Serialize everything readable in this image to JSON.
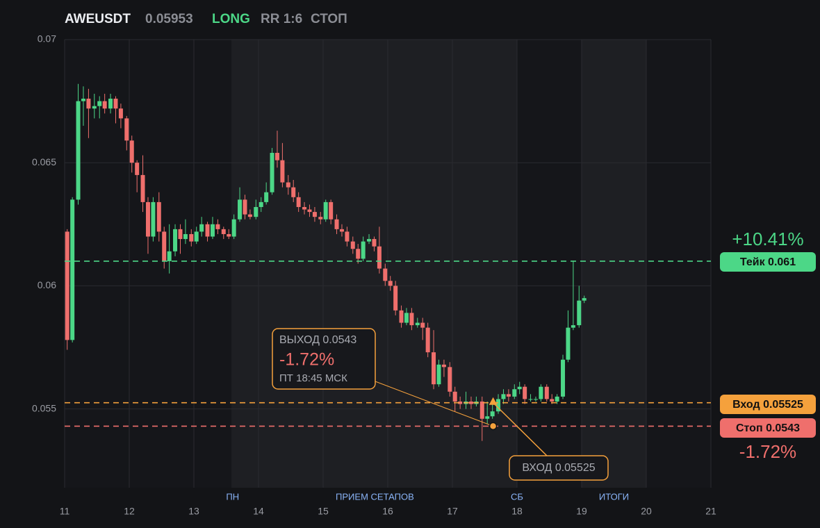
{
  "chart_data": {
    "type": "candlestick",
    "title": "AWEUSDT",
    "price": 0.05953,
    "side": "LONG",
    "rr": "RR 1:6",
    "status": "СТОП",
    "up_color": "#4cd787",
    "down_color": "#ef6f6c",
    "xlim": [
      11,
      21
    ],
    "xticks": [
      11,
      12,
      13,
      14,
      15,
      16,
      17,
      18,
      19,
      20,
      21
    ],
    "ylim": [
      0.0518,
      0.07
    ],
    "yticks": [
      0.055,
      0.06,
      0.065,
      0.07
    ],
    "grid": true,
    "regions": [
      {
        "from": 13.58,
        "to": 18.0
      },
      {
        "from": 19.0,
        "to": 20.0
      }
    ],
    "region_labels": [
      {
        "text": "ПН",
        "x": 13.6
      },
      {
        "text": "ПРИЕМ СЕТАПОВ",
        "x": 15.8
      },
      {
        "text": "СБ",
        "x": 18.0
      },
      {
        "text": "ИТОГИ",
        "x": 19.5
      }
    ],
    "x": [
      11.04,
      11.12,
      11.21,
      11.29,
      11.37,
      11.46,
      11.54,
      11.62,
      11.71,
      11.79,
      11.87,
      11.96,
      12.04,
      12.12,
      12.21,
      12.29,
      12.37,
      12.46,
      12.54,
      12.62,
      12.71,
      12.79,
      12.87,
      12.96,
      13.04,
      13.12,
      13.21,
      13.29,
      13.37,
      13.46,
      13.54,
      13.62,
      13.71,
      13.79,
      13.87,
      13.96,
      14.04,
      14.12,
      14.21,
      14.29,
      14.37,
      14.46,
      14.54,
      14.62,
      14.71,
      14.79,
      14.87,
      14.96,
      15.04,
      15.12,
      15.21,
      15.29,
      15.37,
      15.46,
      15.54,
      15.62,
      15.71,
      15.79,
      15.87,
      15.96,
      16.04,
      16.12,
      16.21,
      16.29,
      16.37,
      16.46,
      16.54,
      16.62,
      16.71,
      16.79,
      16.87,
      16.96,
      17.04,
      17.12,
      17.21,
      17.29,
      17.37,
      17.46,
      17.54,
      17.62,
      17.71,
      17.79,
      17.87,
      17.96,
      18.04,
      18.12,
      18.21,
      18.29,
      18.37,
      18.46,
      18.54,
      18.62,
      18.71,
      18.79,
      18.87,
      18.96,
      19.04
    ],
    "open": [
      0.0622,
      0.0578,
      0.0635,
      0.0675,
      0.0676,
      0.0672,
      0.0673,
      0.0675,
      0.0672,
      0.0676,
      0.0672,
      0.0668,
      0.0659,
      0.065,
      0.0645,
      0.0634,
      0.062,
      0.0634,
      0.0622,
      0.061,
      0.0614,
      0.0623,
      0.0619,
      0.0621,
      0.0618,
      0.0622,
      0.0625,
      0.062,
      0.0625,
      0.0623,
      0.0621,
      0.062,
      0.0627,
      0.0635,
      0.0629,
      0.0628,
      0.0632,
      0.0634,
      0.0638,
      0.0654,
      0.0651,
      0.0642,
      0.064,
      0.0636,
      0.0632,
      0.0631,
      0.063,
      0.0628,
      0.0627,
      0.0634,
      0.0627,
      0.0623,
      0.0622,
      0.0618,
      0.0615,
      0.0611,
      0.0618,
      0.0619,
      0.0616,
      0.0607,
      0.0602,
      0.06,
      0.059,
      0.0585,
      0.0589,
      0.0584,
      0.0585,
      0.0583,
      0.0573,
      0.056,
      0.0568,
      0.0567,
      0.0557,
      0.0553,
      0.0552,
      0.0553,
      0.0552,
      0.0553,
      0.0546,
      0.0547,
      0.0549,
      0.0554,
      0.0556,
      0.0555,
      0.0558,
      0.0559,
      0.0554,
      0.0554,
      0.0554,
      0.0559,
      0.0554,
      0.0553,
      0.0555,
      0.057,
      0.0583,
      0.0584,
      0.0594
    ],
    "high": [
      0.0623,
      0.0636,
      0.0682,
      0.0681,
      0.068,
      0.0678,
      0.0677,
      0.0678,
      0.0678,
      0.0677,
      0.0674,
      0.0669,
      0.0661,
      0.0651,
      0.0653,
      0.0636,
      0.0636,
      0.0638,
      0.0624,
      0.0625,
      0.0625,
      0.0625,
      0.0627,
      0.0623,
      0.0624,
      0.0628,
      0.0626,
      0.0628,
      0.0627,
      0.0624,
      0.0623,
      0.0629,
      0.064,
      0.0637,
      0.0631,
      0.0635,
      0.0636,
      0.0642,
      0.0656,
      0.0663,
      0.0658,
      0.0645,
      0.0643,
      0.0638,
      0.0634,
      0.0633,
      0.0632,
      0.063,
      0.0635,
      0.0635,
      0.0629,
      0.0625,
      0.0624,
      0.062,
      0.0617,
      0.062,
      0.0621,
      0.062,
      0.0624,
      0.0609,
      0.0604,
      0.0602,
      0.0592,
      0.0591,
      0.0591,
      0.0587,
      0.0587,
      0.0585,
      0.0582,
      0.057,
      0.057,
      0.0569,
      0.0559,
      0.0555,
      0.0557,
      0.0555,
      0.0555,
      0.0555,
      0.0553,
      0.0553,
      0.0556,
      0.0558,
      0.0558,
      0.056,
      0.0561,
      0.056,
      0.0556,
      0.0555,
      0.056,
      0.056,
      0.0556,
      0.0556,
      0.0572,
      0.059,
      0.061,
      0.06,
      0.0596
    ],
    "low": [
      0.0574,
      0.0577,
      0.0633,
      0.0665,
      0.066,
      0.0668,
      0.0668,
      0.067,
      0.067,
      0.0666,
      0.0664,
      0.0655,
      0.0646,
      0.0638,
      0.063,
      0.0613,
      0.0618,
      0.0618,
      0.0607,
      0.0605,
      0.0612,
      0.0613,
      0.0617,
      0.0616,
      0.0617,
      0.062,
      0.0618,
      0.0619,
      0.0621,
      0.0619,
      0.0619,
      0.0619,
      0.0626,
      0.0627,
      0.0627,
      0.0627,
      0.063,
      0.0633,
      0.0637,
      0.0648,
      0.064,
      0.0637,
      0.0634,
      0.063,
      0.0629,
      0.0628,
      0.0626,
      0.0625,
      0.0626,
      0.0625,
      0.0621,
      0.062,
      0.0616,
      0.0613,
      0.0609,
      0.061,
      0.0617,
      0.0614,
      0.0605,
      0.06,
      0.0598,
      0.0588,
      0.0583,
      0.0584,
      0.0582,
      0.0583,
      0.0578,
      0.0571,
      0.0558,
      0.0559,
      0.0563,
      0.0555,
      0.0549,
      0.055,
      0.055,
      0.055,
      0.0551,
      0.0537,
      0.0544,
      0.0546,
      0.0548,
      0.0552,
      0.0553,
      0.0554,
      0.0556,
      0.0552,
      0.0553,
      0.0553,
      0.0553,
      0.0553,
      0.0552,
      0.0552,
      0.0554,
      0.0569,
      0.0582,
      0.0583,
      0.0593
    ],
    "close": [
      0.0578,
      0.0635,
      0.0675,
      0.0676,
      0.0672,
      0.0673,
      0.0675,
      0.0672,
      0.0676,
      0.0672,
      0.0668,
      0.0659,
      0.065,
      0.0645,
      0.0634,
      0.062,
      0.0634,
      0.0622,
      0.061,
      0.0614,
      0.0623,
      0.0619,
      0.0621,
      0.0618,
      0.0622,
      0.0625,
      0.062,
      0.0625,
      0.0623,
      0.0621,
      0.062,
      0.0627,
      0.0635,
      0.0629,
      0.0628,
      0.0632,
      0.0634,
      0.0638,
      0.0654,
      0.0651,
      0.0642,
      0.064,
      0.0636,
      0.0632,
      0.0631,
      0.063,
      0.0628,
      0.0627,
      0.0634,
      0.0627,
      0.0623,
      0.0622,
      0.0618,
      0.0615,
      0.0611,
      0.0618,
      0.0619,
      0.0616,
      0.0607,
      0.0602,
      0.06,
      0.059,
      0.0585,
      0.0589,
      0.0584,
      0.0585,
      0.0583,
      0.0573,
      0.056,
      0.0568,
      0.0567,
      0.0557,
      0.0553,
      0.0552,
      0.0553,
      0.0552,
      0.0553,
      0.0546,
      0.0547,
      0.0549,
      0.0554,
      0.0556,
      0.0555,
      0.0558,
      0.0559,
      0.0554,
      0.0554,
      0.0554,
      0.0559,
      0.0554,
      0.0553,
      0.0555,
      0.057,
      0.0583,
      0.0584,
      0.0594,
      0.0595
    ],
    "levels": [
      {
        "value": 0.061,
        "label": "Тейк 0.061",
        "change": "+10.41%",
        "color": "#4cd787"
      },
      {
        "value": 0.05525,
        "label": "Вход 0.05525",
        "color": "#f5a13c"
      },
      {
        "value": 0.0543,
        "label": "Стоп 0.0543",
        "change": "-1.72%",
        "color": "#ef6f6c"
      }
    ],
    "exit": {
      "x": 17.63,
      "y": 0.0543,
      "title": "ВЫХОД 0.0543",
      "result": "-1.72%",
      "time": "ПТ 18:45 МСК"
    },
    "entry": {
      "x": 17.63,
      "y": 0.05525,
      "title": "ВХОД 0.05525"
    }
  }
}
